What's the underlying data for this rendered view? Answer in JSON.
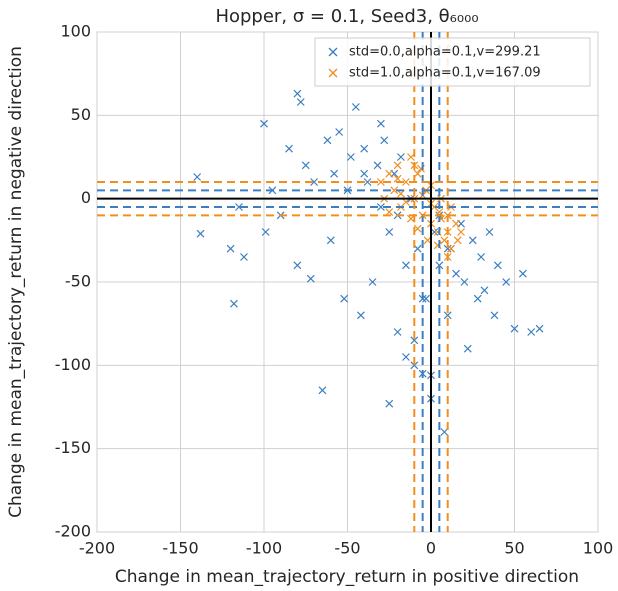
{
  "chart_data": {
    "type": "scatter",
    "title": "Hopper, σ = 0.1, Seed3, θ₆₀₀₀",
    "xlabel": "Change in mean_trajectory_return in positive direction",
    "ylabel": "Change in mean_trajectory_return in negative direction",
    "xlim": [
      -200,
      100
    ],
    "ylim": [
      -200,
      100
    ],
    "xticks": [
      -200,
      -150,
      -100,
      -50,
      0,
      50,
      100
    ],
    "yticks": [
      -200,
      -150,
      -100,
      -50,
      0,
      50,
      100
    ],
    "grid": true,
    "legend": "upper right",
    "series": [
      {
        "name": "std=0.0,alpha=0.1,v=299.21",
        "color": "#3c7fc1",
        "bound": 5,
        "x": [
          -140,
          -138,
          -120,
          -118,
          -115,
          -112,
          -100,
          -99,
          -95,
          -90,
          -85,
          -80,
          -80,
          -78,
          -75,
          -72,
          -70,
          -65,
          -62,
          -60,
          -58,
          -55,
          -52,
          -50,
          -48,
          -45,
          -42,
          -40,
          -38,
          -35,
          -32,
          -30,
          -28,
          -25,
          -22,
          -20,
          -18,
          -15,
          -12,
          -10,
          -8,
          -5,
          -3,
          0,
          2,
          5,
          8,
          10,
          12,
          15,
          18,
          20,
          22,
          25,
          28,
          30,
          32,
          35,
          38,
          40,
          45,
          50,
          55,
          60,
          65,
          -40,
          -30,
          -20,
          -10,
          0,
          10,
          -25,
          -15,
          -5,
          5
        ],
        "values": [
          13,
          -21,
          -30,
          -63,
          -5,
          -35,
          45,
          -20,
          5,
          -10,
          30,
          63,
          -40,
          58,
          20,
          -48,
          10,
          -115,
          35,
          -25,
          15,
          40,
          -60,
          5,
          25,
          55,
          -70,
          30,
          10,
          -50,
          20,
          -5,
          35,
          -20,
          15,
          -80,
          25,
          -40,
          0,
          -100,
          -30,
          -105,
          -60,
          -120,
          -20,
          -10,
          -140,
          -70,
          -30,
          -45,
          -15,
          -50,
          -90,
          -25,
          -60,
          -35,
          -55,
          -20,
          -70,
          -40,
          -50,
          -78,
          -45,
          -80,
          -78,
          15,
          45,
          -10,
          -85,
          -106,
          -30,
          -123,
          -95,
          -60,
          -40
        ]
      },
      {
        "name": "std=1.0,alpha=0.1,v=167.09",
        "color": "#f28e1c",
        "bound": 10,
        "x": [
          -30,
          -28,
          -25,
          -22,
          -20,
          -18,
          -15,
          -12,
          -10,
          -8,
          -5,
          -3,
          0,
          2,
          4,
          6,
          8,
          10,
          12,
          15,
          -25,
          -20,
          -15,
          -10,
          -5,
          0,
          5,
          10,
          -18,
          -12,
          -6,
          0,
          6,
          12,
          18,
          -8,
          -2,
          4,
          10,
          16
        ],
        "values": [
          10,
          0,
          15,
          5,
          20,
          -5,
          10,
          25,
          0,
          15,
          -10,
          5,
          -15,
          -5,
          -20,
          0,
          -25,
          -10,
          -30,
          -15,
          -8,
          12,
          -2,
          20,
          2,
          8,
          -8,
          -20,
          3,
          -12,
          18,
          -3,
          -12,
          -5,
          -20,
          -18,
          -25,
          -28,
          -35,
          -25
        ]
      }
    ]
  }
}
